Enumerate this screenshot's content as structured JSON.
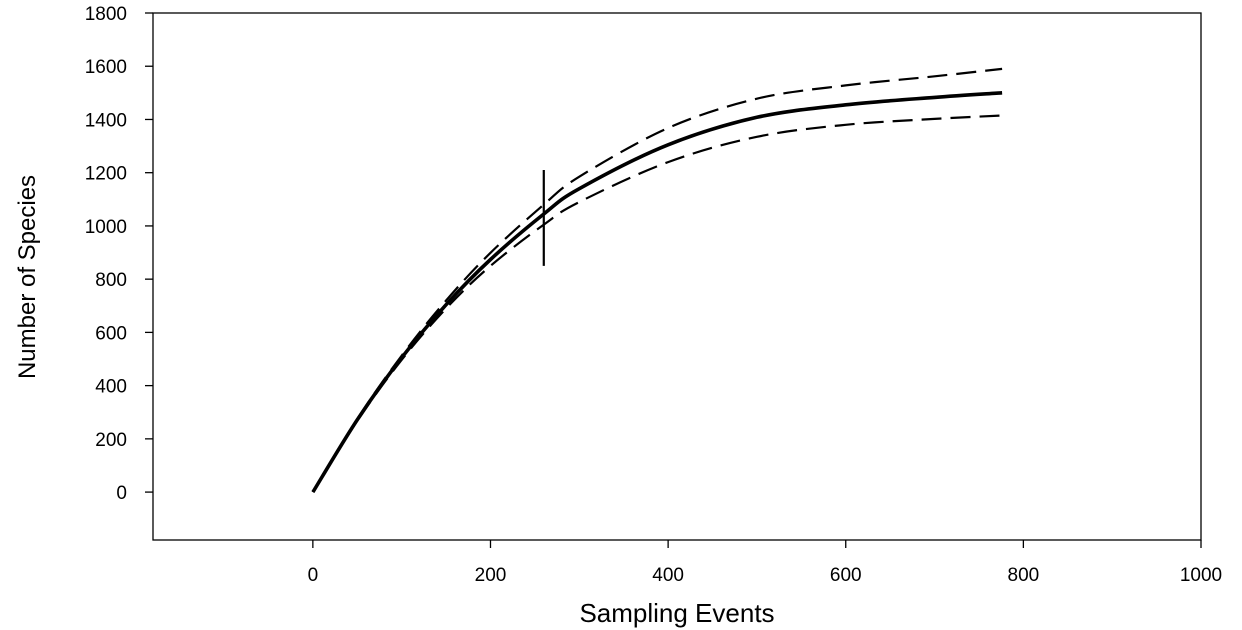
{
  "chart_data": {
    "type": "line",
    "title": "",
    "xlabel": "Sampling Events",
    "ylabel": "Number of Species",
    "xlim": [
      -180,
      1000
    ],
    "ylim": [
      -180,
      1800
    ],
    "xticks": [
      0,
      200,
      400,
      600,
      800,
      1000
    ],
    "yticks": [
      0,
      200,
      400,
      600,
      800,
      1000,
      1200,
      1400,
      1600,
      1800
    ],
    "grid": false,
    "legend": "none",
    "x": [
      0,
      50,
      100,
      150,
      200,
      260,
      300,
      400,
      500,
      600,
      700,
      776
    ],
    "series": [
      {
        "style": "solid",
        "values": [
          0,
          272,
          505,
          704,
          874,
          1045,
          1140,
          1305,
          1408,
          1455,
          1483,
          1500
        ]
      },
      {
        "style": "dashed",
        "values": [
          0,
          275,
          513,
          720,
          899,
          1080,
          1185,
          1368,
          1478,
          1528,
          1562,
          1590
        ]
      },
      {
        "style": "dashed",
        "values": [
          0,
          268,
          497,
          690,
          850,
          1005,
          1090,
          1240,
          1335,
          1380,
          1402,
          1415
        ]
      }
    ],
    "annotations": [
      {
        "type": "vertical-line",
        "x": 260,
        "y_range": [
          850,
          1210
        ]
      }
    ],
    "colors": {
      "line": "#000000",
      "axis": "#000000"
    }
  }
}
